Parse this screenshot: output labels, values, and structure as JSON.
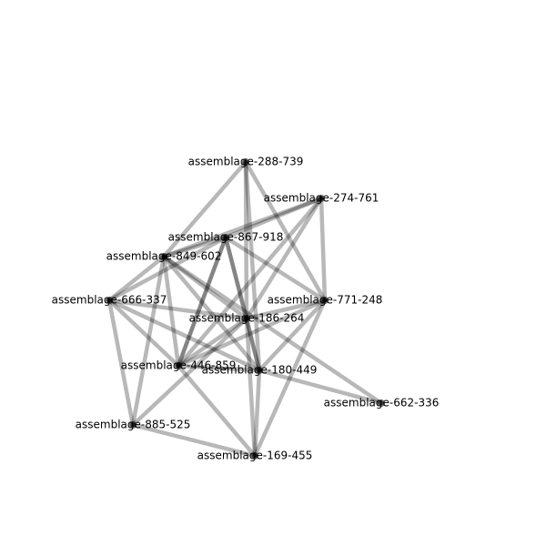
{
  "graph": {
    "nodes": [
      {
        "id": "n288",
        "label": "assemblage-288-739"
      },
      {
        "id": "n274",
        "label": "assemblage-274-761"
      },
      {
        "id": "n867",
        "label": "assemblage-867-918"
      },
      {
        "id": "n849",
        "label": "assemblage-849-602"
      },
      {
        "id": "n666",
        "label": "assemblage-666-337"
      },
      {
        "id": "n771",
        "label": "assemblage-771-248"
      },
      {
        "id": "n186",
        "label": "assemblage-186-264"
      },
      {
        "id": "n446",
        "label": "assemblage-446-859"
      },
      {
        "id": "n180",
        "label": "assemblage-180-449"
      },
      {
        "id": "n662",
        "label": "assemblage-662-336"
      },
      {
        "id": "n885",
        "label": "assemblage-885-525"
      },
      {
        "id": "n169",
        "label": "assemblage-169-455"
      }
    ],
    "edges": [
      [
        "n288",
        "n849"
      ],
      [
        "n288",
        "n186"
      ],
      [
        "n288",
        "n771"
      ],
      [
        "n288",
        "n180"
      ],
      [
        "n274",
        "n867"
      ],
      [
        "n274",
        "n849"
      ],
      [
        "n274",
        "n771"
      ],
      [
        "n274",
        "n446"
      ],
      [
        "n274",
        "n186"
      ],
      [
        "n867",
        "n849"
      ],
      [
        "n867",
        "n186"
      ],
      [
        "n867",
        "n180"
      ],
      [
        "n867",
        "n771"
      ],
      [
        "n867",
        "n666"
      ],
      [
        "n867",
        "n446"
      ],
      [
        "n849",
        "n666"
      ],
      [
        "n849",
        "n186"
      ],
      [
        "n849",
        "n446"
      ],
      [
        "n849",
        "n180"
      ],
      [
        "n849",
        "n885"
      ],
      [
        "n849",
        "n662"
      ],
      [
        "n666",
        "n186"
      ],
      [
        "n666",
        "n446"
      ],
      [
        "n666",
        "n180"
      ],
      [
        "n666",
        "n885"
      ],
      [
        "n771",
        "n186"
      ],
      [
        "n771",
        "n446"
      ],
      [
        "n771",
        "n180"
      ],
      [
        "n771",
        "n169"
      ],
      [
        "n186",
        "n446"
      ],
      [
        "n186",
        "n180"
      ],
      [
        "n186",
        "n169"
      ],
      [
        "n186",
        "n885"
      ],
      [
        "n446",
        "n180"
      ],
      [
        "n446",
        "n169"
      ],
      [
        "n446",
        "n867"
      ],
      [
        "n180",
        "n169"
      ],
      [
        "n180",
        "n662"
      ],
      [
        "n885",
        "n169"
      ]
    ]
  }
}
